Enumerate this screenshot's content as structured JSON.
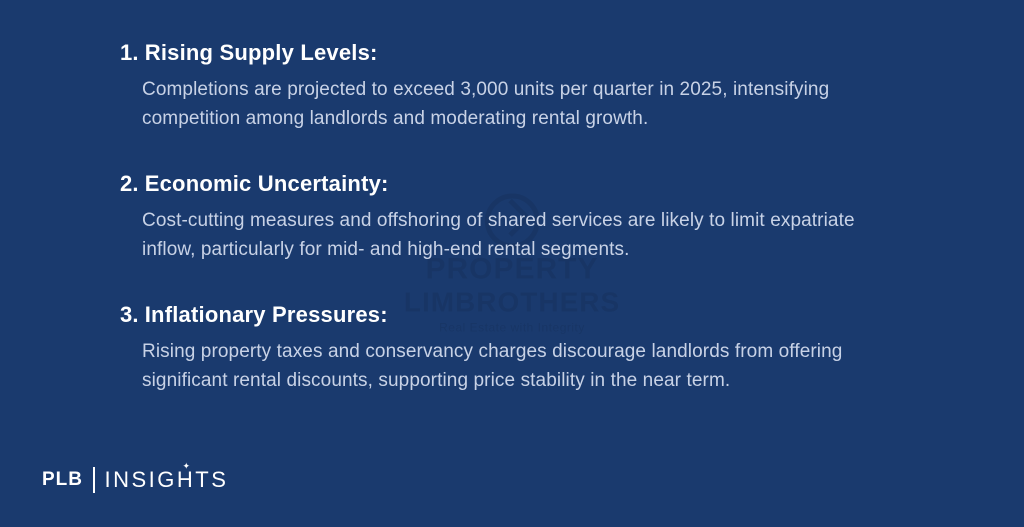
{
  "colors": {
    "background": "#1a3a6e",
    "heading_text": "#ffffff",
    "body_text": "#c8d2e6",
    "logo_text": "#ffffff"
  },
  "typography": {
    "heading_fontsize": 22,
    "heading_weight": 600,
    "body_fontsize": 19,
    "body_weight": 400,
    "body_lineheight": 1.5
  },
  "items": [
    {
      "number": "1.",
      "title": "Rising Supply Levels:",
      "body": "Completions are projected to exceed 3,000 units per quarter in 2025, intensifying competition among landlords and moderating rental growth."
    },
    {
      "number": "2.",
      "title": "Economic Uncertainty:",
      "body": "Cost-cutting measures and offshoring of shared services are likely to limit expatriate inflow, particularly for mid- and high-end rental segments."
    },
    {
      "number": "3.",
      "title": "Inflationary Pressures:",
      "body": "Rising property taxes and conservancy charges discourage landlords from offering significant rental discounts, supporting price stability in the near term."
    }
  ],
  "watermark": {
    "line1": "PROPERTY",
    "line2": "LIMBROTHERS",
    "tagline": "Real Estate with Integrity"
  },
  "footer": {
    "brand": "PLB",
    "product": "INSIGHTS"
  }
}
